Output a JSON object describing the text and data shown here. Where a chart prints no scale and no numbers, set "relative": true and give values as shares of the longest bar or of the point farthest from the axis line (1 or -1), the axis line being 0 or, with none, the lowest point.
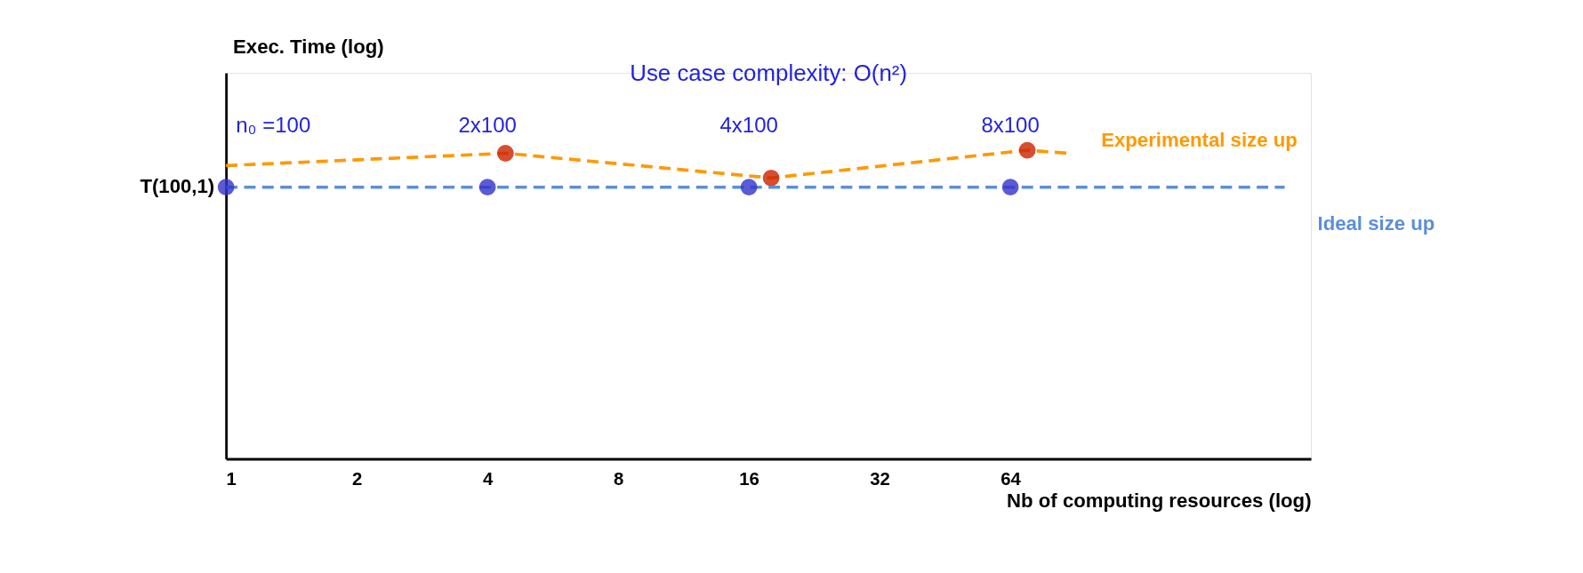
{
  "chart_data": {
    "type": "line",
    "title": "Use case complexity: O(n²)",
    "xlabel": "Nb of computing resources (log)",
    "ylabel": "Exec. Time (log)",
    "relative": true,
    "log": "x",
    "xlim": [
      1,
      315
    ],
    "xticks": [
      1,
      2,
      4,
      8,
      16,
      32,
      64
    ],
    "tick_labels": "x",
    "grid": false,
    "series": [
      {
        "name": "Experimental size up",
        "color": "#ff9900",
        "x": [
          1,
          4.4,
          18,
          70,
          87
        ],
        "values": [
          0.95,
          0.99,
          0.91,
          1.0,
          0.99
        ],
        "marker": "none",
        "line_style": "dashed"
      },
      {
        "color": "#cc2200",
        "type": "scatter",
        "x": [
          4.4,
          18,
          70
        ],
        "values": [
          0.99,
          0.91,
          1.0
        ],
        "marker": "circle"
      },
      {
        "name": "Ideal size up",
        "color": "#5b8fd9",
        "x": [
          1,
          274
        ],
        "values": [
          0.88,
          0.88
        ],
        "marker": "none",
        "line_style": "dashed"
      },
      {
        "color": "#3333cc",
        "type": "scatter",
        "x": [
          1,
          4,
          16,
          64
        ],
        "values": [
          0.88,
          0.88,
          0.88,
          0.88
        ],
        "marker": "circle"
      }
    ],
    "annotations": [
      {
        "text": "T(100,1)",
        "x": 1,
        "y": 0.88
      },
      {
        "text": "n₀ =100",
        "x": 1,
        "y": 0.88
      },
      {
        "text": "2x100",
        "x": 4,
        "y": 0.88
      },
      {
        "text": "4x100",
        "x": 16,
        "y": 0.88
      },
      {
        "text": "8x100",
        "x": 64,
        "y": 0.88
      }
    ]
  }
}
